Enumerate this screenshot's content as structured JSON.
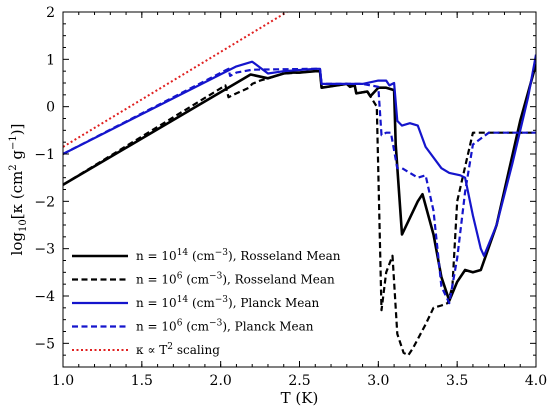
{
  "chart_data": {
    "type": "line",
    "xlabel": "T (K)",
    "ylabel": "log10[κ (cm2 g−1)]",
    "xlim": [
      1.0,
      4.0
    ],
    "ylim": [
      -5.5,
      2.0
    ],
    "x_scale": "log10 of temperature",
    "x_ticks": [
      1.0,
      1.5,
      2.0,
      2.5,
      3.0,
      3.5,
      4.0
    ],
    "x_tick_labels": [
      "1.0",
      "1.5",
      "2.0",
      "2.5",
      "3.0",
      "3.5",
      "4.0"
    ],
    "y_ticks": [
      -5,
      -4,
      -3,
      -2,
      -1,
      0,
      1,
      2
    ],
    "y_tick_labels": [
      "−5",
      "−4",
      "−3",
      "−2",
      "−1",
      "0",
      "1",
      "2"
    ],
    "grid": false,
    "legend_position": "bottom-left",
    "series": [
      {
        "name": "n = 10^14 (cm^−3), Rosseland Mean",
        "color": "#000000",
        "style": "solid",
        "x": [
          1.0,
          2.15,
          2.19,
          2.3,
          2.4,
          2.45,
          2.5,
          2.6,
          2.63,
          2.64,
          2.8,
          2.82,
          2.85,
          2.86,
          2.93,
          2.95,
          3.0,
          3.05,
          3.1,
          3.11,
          3.15,
          3.25,
          3.28,
          3.35,
          3.4,
          3.45,
          3.5,
          3.55,
          3.6,
          3.65,
          3.75,
          3.9,
          4.0
        ],
        "y": [
          -1.65,
          0.6,
          0.68,
          0.6,
          0.7,
          0.72,
          0.72,
          0.75,
          0.75,
          0.4,
          0.48,
          0.42,
          0.45,
          0.28,
          0.32,
          0.22,
          0.4,
          0.4,
          0.35,
          -0.8,
          -2.7,
          -2.0,
          -1.85,
          -2.7,
          -3.6,
          -4.1,
          -3.7,
          -3.45,
          -3.5,
          -3.45,
          -2.5,
          -0.3,
          0.9
        ]
      },
      {
        "name": "n = 10^6 (cm^−3), Rosseland Mean",
        "color": "#000000",
        "style": "dashed",
        "x": [
          1.0,
          2.03,
          2.05,
          2.1,
          2.18,
          2.2,
          2.25,
          2.3,
          2.4,
          2.5,
          2.6,
          2.63,
          2.64,
          2.8,
          2.85,
          2.86,
          2.93,
          2.95,
          2.99,
          3.02,
          3.05,
          3.09,
          3.12,
          3.16,
          3.19,
          3.22,
          3.3,
          3.35,
          3.4,
          3.44,
          3.47,
          3.5,
          3.6,
          3.8,
          4.0
        ],
        "y": [
          -1.65,
          0.45,
          0.2,
          0.28,
          0.4,
          0.48,
          0.55,
          0.6,
          0.7,
          0.72,
          0.75,
          0.75,
          0.4,
          0.48,
          0.45,
          0.28,
          0.32,
          0.22,
          0.0,
          -4.3,
          -3.5,
          -3.15,
          -4.8,
          -5.2,
          -5.25,
          -5.1,
          -4.6,
          -4.25,
          -4.2,
          -4.15,
          -3.8,
          -2.0,
          -0.55,
          -0.55,
          -0.55
        ]
      },
      {
        "name": "n = 10^14 (cm^−3), Planck Mean",
        "color": "#1515cc",
        "style": "solid",
        "x": [
          1.0,
          2.1,
          2.2,
          2.3,
          2.4,
          2.6,
          2.63,
          2.64,
          2.9,
          3.0,
          3.05,
          3.07,
          3.1,
          3.12,
          3.15,
          3.2,
          3.25,
          3.3,
          3.4,
          3.45,
          3.52,
          3.55,
          3.6,
          3.65,
          3.67,
          3.75,
          3.85,
          3.95,
          4.0
        ],
        "y": [
          -1.0,
          0.85,
          0.95,
          0.7,
          0.75,
          0.8,
          0.8,
          0.48,
          0.48,
          0.55,
          0.55,
          0.45,
          0.5,
          -0.3,
          -0.4,
          -0.35,
          -0.4,
          -0.85,
          -1.3,
          -1.4,
          -1.45,
          -1.5,
          -2.3,
          -3.0,
          -3.15,
          -2.5,
          -1.2,
          0.2,
          1.1
        ]
      },
      {
        "name": "n = 10^6 (cm^−3), Planck Mean",
        "color": "#1515cc",
        "style": "dashed",
        "x": [
          1.0,
          2.05,
          2.06,
          2.1,
          2.2,
          2.6,
          2.63,
          2.64,
          2.9,
          3.0,
          3.02,
          3.05,
          3.08,
          3.12,
          3.15,
          3.2,
          3.25,
          3.3,
          3.35,
          3.4,
          3.45,
          3.5,
          3.55,
          3.6,
          3.7,
          3.9,
          4.0
        ],
        "y": [
          -1.0,
          0.8,
          0.65,
          0.72,
          0.78,
          0.8,
          0.8,
          0.48,
          0.48,
          0.42,
          -0.6,
          -0.55,
          -0.55,
          -1.3,
          -1.3,
          -1.4,
          -1.5,
          -1.45,
          -2.2,
          -3.8,
          -4.15,
          -3.2,
          -1.8,
          -0.8,
          -0.55,
          -0.55,
          -0.55
        ]
      },
      {
        "name": "κ ∝ T^2 scaling",
        "color": "#e02020",
        "style": "dotted",
        "x": [
          1.0,
          2.42
        ],
        "y": [
          -0.85,
          2.0
        ]
      }
    ]
  },
  "legend": [
    {
      "pre": "n = 10",
      "sup": "14",
      "post": " (cm",
      "sup2": "−3",
      "tail": "), Rosseland Mean"
    },
    {
      "pre": "n = 10",
      "sup": "6",
      "post": " (cm",
      "sup2": "−3",
      "tail": "), Rosseland Mean"
    },
    {
      "pre": "n = 10",
      "sup": "14",
      "post": " (cm",
      "sup2": "−3",
      "tail": "), Planck Mean"
    },
    {
      "pre": "n = 10",
      "sup": "6",
      "post": " (cm",
      "sup2": "−3",
      "tail": "), Planck Mean"
    },
    {
      "pre": "κ ∝ T",
      "sup": "2",
      "post": " scaling",
      "sup2": "",
      "tail": ""
    }
  ],
  "axis_labels": {
    "x": "T (K)",
    "y_prefix": "log",
    "y_sub": "10",
    "y_mid": "[κ (cm",
    "y_sup1": "2",
    "y_mid2": " g",
    "y_sup2": "−1",
    "y_end": ")]"
  }
}
